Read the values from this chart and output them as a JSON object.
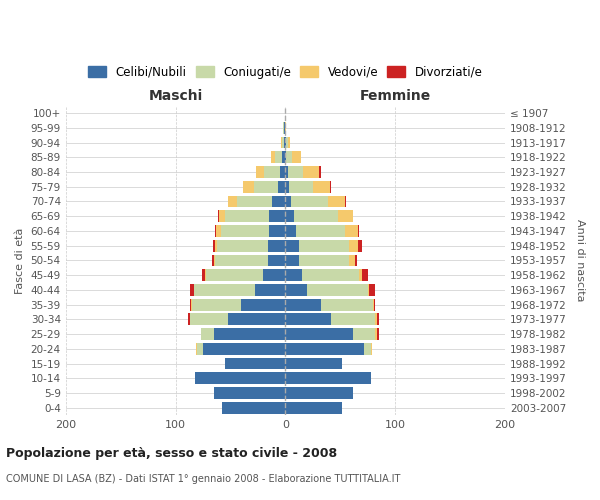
{
  "age_groups": [
    "0-4",
    "5-9",
    "10-14",
    "15-19",
    "20-24",
    "25-29",
    "30-34",
    "35-39",
    "40-44",
    "45-49",
    "50-54",
    "55-59",
    "60-64",
    "65-69",
    "70-74",
    "75-79",
    "80-84",
    "85-89",
    "90-94",
    "95-99",
    "100+"
  ],
  "birth_years": [
    "2003-2007",
    "1998-2002",
    "1993-1997",
    "1988-1992",
    "1983-1987",
    "1978-1982",
    "1973-1977",
    "1968-1972",
    "1963-1967",
    "1958-1962",
    "1953-1957",
    "1948-1952",
    "1943-1947",
    "1938-1942",
    "1933-1937",
    "1928-1932",
    "1923-1927",
    "1918-1922",
    "1913-1917",
    "1908-1912",
    "≤ 1907"
  ],
  "male_celibi": [
    58,
    65,
    82,
    55,
    75,
    65,
    52,
    40,
    28,
    20,
    16,
    16,
    15,
    15,
    12,
    7,
    5,
    3,
    1,
    1,
    0
  ],
  "male_coniugati": [
    0,
    0,
    0,
    0,
    5,
    12,
    35,
    45,
    55,
    52,
    48,
    46,
    44,
    40,
    32,
    22,
    14,
    6,
    2,
    1,
    0
  ],
  "male_vedovi": [
    0,
    0,
    0,
    0,
    1,
    0,
    0,
    1,
    0,
    1,
    1,
    2,
    4,
    5,
    8,
    10,
    8,
    4,
    1,
    0,
    0
  ],
  "male_divorziati": [
    0,
    0,
    0,
    0,
    0,
    0,
    2,
    1,
    4,
    3,
    2,
    2,
    1,
    1,
    0,
    0,
    0,
    0,
    0,
    0,
    0
  ],
  "female_celibi": [
    52,
    62,
    78,
    52,
    72,
    62,
    42,
    32,
    20,
    15,
    12,
    12,
    10,
    8,
    5,
    3,
    2,
    1,
    1,
    0,
    0
  ],
  "female_coniugati": [
    0,
    0,
    0,
    0,
    6,
    20,
    40,
    48,
    55,
    52,
    46,
    46,
    44,
    40,
    34,
    22,
    14,
    5,
    1,
    0,
    0
  ],
  "female_vedovi": [
    0,
    0,
    0,
    0,
    1,
    1,
    1,
    1,
    1,
    3,
    5,
    8,
    12,
    14,
    15,
    16,
    15,
    8,
    2,
    1,
    0
  ],
  "female_divorziati": [
    0,
    0,
    0,
    0,
    0,
    2,
    2,
    1,
    6,
    5,
    2,
    4,
    1,
    0,
    1,
    1,
    1,
    0,
    0,
    0,
    0
  ],
  "color_celibi": "#3b6ea5",
  "color_coniugati": "#c8d9a8",
  "color_vedovi": "#f5c96c",
  "color_divorziati": "#cc2222",
  "title": "Popolazione per età, sesso e stato civile - 2008",
  "subtitle": "COMUNE DI LASA (BZ) - Dati ISTAT 1° gennaio 2008 - Elaborazione TUTTITALIA.IT",
  "xlabel_left": "Maschi",
  "xlabel_right": "Femmine",
  "ylabel_left": "Fasce di età",
  "ylabel_right": "Anni di nascita",
  "xlim": 200,
  "background_color": "#ffffff",
  "grid_color": "#cccccc"
}
